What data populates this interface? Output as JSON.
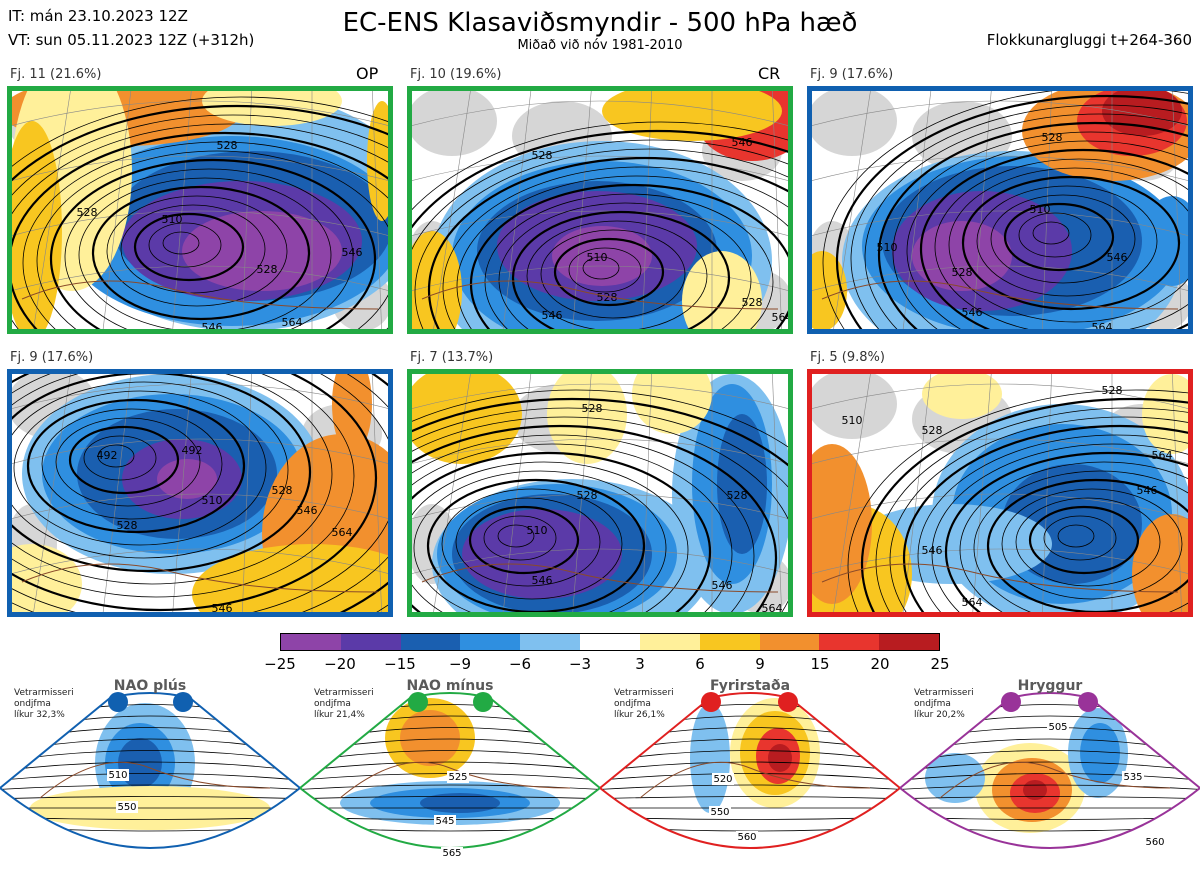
{
  "header": {
    "it_line": "IT: mán 23.10.2023 12Z",
    "vt_line": "VT: sun 05.11.2023 12Z  (+312h)",
    "title": "EC-ENS Klasaviðsmyndir - 500 hPa hæð",
    "subtitle": "Miðað við nóv 1981-2010",
    "cluster_window": "Flokkunargluggi t+264-360"
  },
  "colors": {
    "blue_regime": "#1060b0",
    "green_regime": "#22aa44",
    "red_regime": "#e02020",
    "purple_regime": "#993399"
  },
  "panels": [
    {
      "label": "Fj. 11 (21.6%)",
      "tag": "OP",
      "border_color": "#22aa44",
      "contours": [
        "510",
        "528",
        "546",
        "528",
        "528",
        "546",
        "564"
      ]
    },
    {
      "label": "Fj. 10 (19.6%)",
      "tag": "CR",
      "border_color": "#22aa44",
      "contours": [
        "528",
        "510",
        "528",
        "546",
        "546",
        "528",
        "564"
      ]
    },
    {
      "label": "Fj. 9 (17.6%)",
      "tag": "",
      "border_color": "#1060b0",
      "contours": [
        "510",
        "528",
        "546",
        "528",
        "510",
        "546",
        "564"
      ]
    },
    {
      "label": "Fj. 9 (17.6%)",
      "tag": "",
      "border_color": "#1060b0",
      "contours": [
        "492",
        "492",
        "510",
        "528",
        "528",
        "546",
        "564",
        "546"
      ]
    },
    {
      "label": "Fj. 7 (13.7%)",
      "tag": "",
      "border_color": "#22aa44",
      "contours": [
        "528",
        "510",
        "528",
        "546",
        "528",
        "546",
        "564"
      ]
    },
    {
      "label": "Fj. 5 (9.8%)",
      "tag": "",
      "border_color": "#e02020",
      "contours": [
        "510",
        "528",
        "546",
        "528",
        "546",
        "564",
        "564"
      ]
    }
  ],
  "colorbar": {
    "ticks": [
      "−25",
      "−20",
      "−15",
      "−9",
      "−6",
      "−3",
      "3",
      "6",
      "9",
      "15",
      "20",
      "25"
    ],
    "colors": [
      "#8e44a8",
      "#5b3aa8",
      "#1a5fb0",
      "#2f8fe0",
      "#7fc0ef",
      "#ffffff",
      "#fff09a",
      "#f8c620",
      "#f2902e",
      "#e8352e",
      "#b81c20"
    ]
  },
  "regimes": [
    {
      "title": "NAO plús",
      "note": [
        "Vetrarmisseri",
        "ondjfma",
        "líkur 32,3%"
      ],
      "color": "#1060b0",
      "labels": [
        "510",
        "550"
      ]
    },
    {
      "title": "NAO mínus",
      "note": [
        "Vetrarmisseri",
        "ondjfma",
        "líkur 21,4%"
      ],
      "color": "#22aa44",
      "labels": [
        "525",
        "545",
        "565"
      ]
    },
    {
      "title": "Fyrirstaða",
      "note": [
        "Vetrarmisseri",
        "ondjfma",
        "líkur 26,1%"
      ],
      "color": "#e02020",
      "labels": [
        "520",
        "550",
        "560"
      ]
    },
    {
      "title": "Hryggur",
      "note": [
        "Vetrarmisseri",
        "ondjfma",
        "líkur 20,2%"
      ],
      "color": "#993399",
      "labels": [
        "505",
        "535",
        "560"
      ]
    }
  ]
}
